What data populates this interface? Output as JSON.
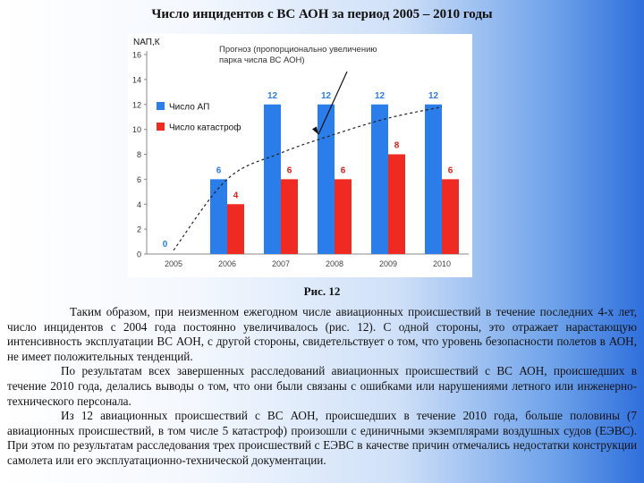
{
  "title": "Число инцидентов с ВС АОН за период 2005 – 2010 годы",
  "figure_caption": "Рис. 12",
  "paragraphs": [
    "Таким образом, при неизменном ежегодном числе авиационных происшествий в течение последних 4-х лет, число инцидентов с 2004 года постоянно увеличивалось (рис. 12). С одной стороны, это отражает нарастающую интенсивность эксплуатации ВС АОН, с другой стороны, свидетельствует о том, что уровень безопасности полетов в АОН, не имеет положительных тенденций.",
    "По результатам всех завершенных расследований авиационных происшествий с ВС АОН, происшедших в течение 2010 года, делались выводы о том, что они были связаны с ошибками или нарушениями летного или инженерно-технического персонала.",
    "Из 12 авиационных происшествий с ВС АОН, происшедших в течение 2010 года, больше половины (7 авиационных происшествий, в том числе 5 катастроф) произошли с единичными экземплярами воздушных судов (ЕЭВС). При этом по результатам расследования трех происшествий с ЕЭВС в качестве причин отмечались недостатки конструкции самолета или его эксплуатационно-технической документации."
  ],
  "chart_data": {
    "type": "bar",
    "ylabel": "NАП,К",
    "categories": [
      "2005",
      "2006",
      "2007",
      "2008",
      "2009",
      "2010"
    ],
    "ylim": [
      0,
      16
    ],
    "yticks": [
      0,
      2,
      4,
      6,
      8,
      10,
      12,
      14,
      16
    ],
    "grid": false,
    "legend_position": "left",
    "series": [
      {
        "name": "Число АП",
        "values": [
          0,
          6,
          12,
          12,
          12,
          12
        ],
        "labels": [
          "0",
          "6",
          "12",
          "12",
          "12",
          "12"
        ],
        "color": "#2b7de9",
        "label_color": "#2b7de9"
      },
      {
        "name": "Число катастроф",
        "values": [
          0,
          4,
          6,
          6,
          8,
          6
        ],
        "labels": [
          "",
          "4",
          "6",
          "6",
          "8",
          "6"
        ],
        "color": "#ee2a22",
        "label_color": "#d8201a"
      }
    ],
    "trend": {
      "style": "dashed",
      "color": "#222222",
      "annotation": [
        "Прогноз (пропорционально увеличению",
        "парка числа ВС АОН)"
      ],
      "points": [
        [
          2005,
          0.3
        ],
        [
          2006,
          6.0
        ],
        [
          2007,
          8.1
        ],
        [
          2008,
          9.6
        ],
        [
          2009,
          10.9
        ],
        [
          2010,
          11.8
        ]
      ]
    }
  }
}
